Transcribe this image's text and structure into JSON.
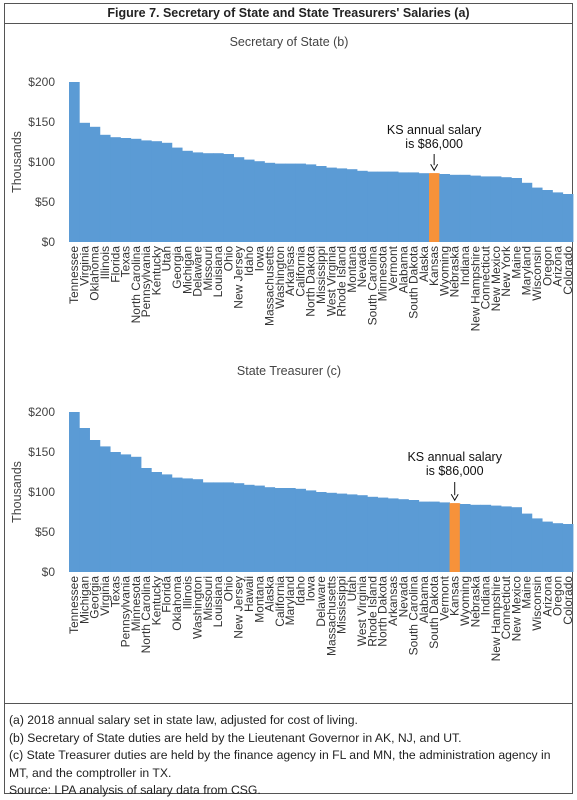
{
  "figure_title": "Figure 7. Secretary of State and State Treasurers' Salaries (a)",
  "chart_data": [
    {
      "type": "bar",
      "title": "Secretary of State (b)",
      "ylabel": "Thousands",
      "ylim": [
        0,
        200
      ],
      "yticks": [
        "$0",
        "$50",
        "$100",
        "$150",
        "$200"
      ],
      "grid": false,
      "bar_color": "#5b9bd5",
      "highlight_color": "#f7923a",
      "highlight": "Kansas",
      "annotation": [
        "KS annual salary",
        "is $86,000"
      ],
      "categories": [
        "Tennessee",
        "Virginia",
        "Oklahoma",
        "Illinois",
        "Florida",
        "Texas",
        "North Carolina",
        "Pennsylvania",
        "Kentucky",
        "Utah",
        "Georgia",
        "Michigan",
        "Delaware",
        "Missouri",
        "Louisiana",
        "Ohio",
        "New Jersey",
        "Idaho",
        "Iowa",
        "Massachusetts",
        "Washington",
        "Arkansas",
        "California",
        "North Dakota",
        "Mississippi",
        "West Virginia",
        "Rhode Island",
        "Montana",
        "Nevada",
        "South Carolina",
        "Minnesota",
        "Vermont",
        "Alabama",
        "South Dakota",
        "Alaska",
        "Kansas",
        "Wyoming",
        "Nebraska",
        "Indiana",
        "New Hampshire",
        "Connecticut",
        "New Mexico",
        "New York",
        "Maine",
        "Maryland",
        "Wisconsin",
        "Oregon",
        "Arizona",
        "Colorado"
      ],
      "values": [
        200,
        149,
        144,
        134,
        131,
        130,
        129,
        127,
        126,
        124,
        118,
        114,
        112,
        111,
        111,
        110,
        106,
        103,
        101,
        99,
        98,
        98,
        98,
        97,
        95,
        93,
        92,
        91,
        89,
        88,
        88,
        88,
        87,
        87,
        86,
        86,
        85,
        84,
        84,
        83,
        82,
        82,
        81,
        80,
        74,
        68,
        65,
        62,
        60
      ]
    },
    {
      "type": "bar",
      "title": "State Treasurer (c)",
      "ylabel": "Thousands",
      "ylim": [
        0,
        200
      ],
      "yticks": [
        "$0",
        "$50",
        "$100",
        "$150",
        "$200"
      ],
      "grid": false,
      "bar_color": "#5b9bd5",
      "highlight_color": "#f7923a",
      "highlight": "Kansas",
      "annotation": [
        "KS annual salary",
        "is $86,000"
      ],
      "categories": [
        "Tennessee",
        "Michigan",
        "Georgia",
        "Virginia",
        "Texas",
        "Pennsylvania",
        "Minnesota",
        "North Carolina",
        "Kentucky",
        "Florida",
        "Oklahoma",
        "Illinois",
        "Washington",
        "Missouri",
        "Louisiana",
        "Ohio",
        "New Jersey",
        "Hawaii",
        "Montana",
        "Alaska",
        "California",
        "Maryland",
        "Idaho",
        "Iowa",
        "Delaware",
        "Massachusetts",
        "Mississippi",
        "Utah",
        "West Virginia",
        "Rhode Island",
        "North Dakota",
        "Arkansas",
        "Nevada",
        "South Carolina",
        "Alabama",
        "South Dakota",
        "Vermont",
        "Kansas",
        "Wyoming",
        "Nebraska",
        "Indiana",
        "New Hampshire",
        "Connecticut",
        "New Mexico",
        "Maine",
        "Wisconsin",
        "Arizona",
        "Oregon",
        "Colorado"
      ],
      "values": [
        200,
        180,
        165,
        157,
        150,
        147,
        144,
        130,
        125,
        122,
        118,
        117,
        116,
        112,
        112,
        112,
        111,
        109,
        108,
        106,
        105,
        105,
        104,
        102,
        100,
        99,
        98,
        97,
        96,
        94,
        93,
        92,
        91,
        90,
        88,
        88,
        87,
        86,
        85,
        84,
        84,
        83,
        82,
        81,
        73,
        67,
        63,
        61,
        60
      ]
    }
  ],
  "notes": [
    "(a) 2018 annual salary set in state law, adjusted for cost of living.",
    "(b) Secretary of State duties are held by the Lieutenant Governor in AK, NJ, and UT.",
    "(c) State Treasurer duties are held by the finance agency in FL and MN, the administration agency in MT, and the comptroller in TX.",
    "Source: LPA analysis of salary data from CSG."
  ]
}
